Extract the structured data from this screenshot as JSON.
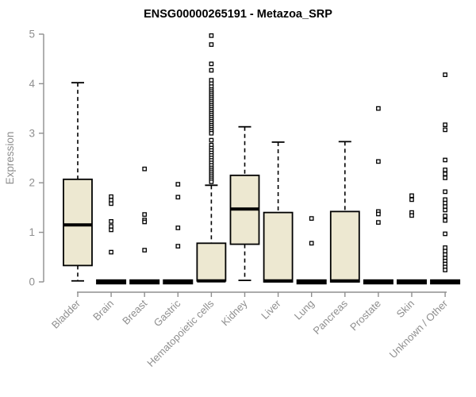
{
  "colors": {
    "box_fill": "#ede8d1",
    "box_stroke": "#000000",
    "axis": "#8f8f8f",
    "label_text": "#8f8f8f",
    "title_text": "#000000",
    "background": "#ffffff"
  },
  "chart_data": {
    "type": "boxplot",
    "title": "ENSG00000265191 - Metazoa_SRP",
    "xlabel": "",
    "ylabel": "Expression",
    "ylim": [
      0,
      5
    ],
    "yticks": [
      0,
      1,
      2,
      3,
      4,
      5
    ],
    "grid": false,
    "legend": "none",
    "categories": [
      "Bladder",
      "Brain",
      "Breast",
      "Gastric",
      "Hematopoietic cells",
      "Kidney",
      "Liver",
      "Lung",
      "Pancreas",
      "Prostate",
      "Skin",
      "Unknown / Other"
    ],
    "series": [
      {
        "name": "Bladder",
        "low": 0.02,
        "q1": 0.33,
        "med": 1.15,
        "q3": 2.07,
        "high": 4.02,
        "outliers": []
      },
      {
        "name": "Brain",
        "low": 0,
        "q1": 0,
        "med": 0,
        "q3": 0,
        "high": 0,
        "outliers": [
          1.72,
          1.65,
          1.58,
          1.22,
          1.12,
          1.05,
          0.6
        ]
      },
      {
        "name": "Breast",
        "low": 0,
        "q1": 0,
        "med": 0,
        "q3": 0,
        "high": 0,
        "outliers": [
          2.28,
          1.36,
          1.25,
          1.21,
          0.64
        ]
      },
      {
        "name": "Gastric",
        "low": 0,
        "q1": 0,
        "med": 0,
        "q3": 0,
        "high": 0,
        "outliers": [
          1.97,
          1.71,
          1.09,
          0.72
        ]
      },
      {
        "name": "Hematopoietic cells",
        "low": 0.02,
        "q1": 0.02,
        "med": 0.02,
        "q3": 0.78,
        "high": 1.95,
        "outliers": [
          4.97,
          4.79,
          4.4,
          4.27,
          4.07,
          4.0,
          3.94,
          3.88,
          3.84,
          3.8,
          3.76,
          3.72,
          3.68,
          3.64,
          3.6,
          3.56,
          3.52,
          3.48,
          3.44,
          3.4,
          3.36,
          3.32,
          3.28,
          3.24,
          3.2,
          3.16,
          3.12,
          3.08,
          3.04,
          3.0,
          2.86,
          2.76,
          2.7,
          2.65,
          2.6,
          2.55,
          2.5,
          2.45,
          2.4,
          2.35,
          2.3,
          2.26,
          2.22,
          2.18,
          2.14,
          2.1,
          2.06,
          2.02
        ]
      },
      {
        "name": "Kidney",
        "low": 0.03,
        "q1": 0.76,
        "med": 1.47,
        "q3": 2.15,
        "high": 3.13,
        "outliers": []
      },
      {
        "name": "Liver",
        "low": 0,
        "q1": 0,
        "med": 0.02,
        "q3": 1.4,
        "high": 2.82,
        "outliers": []
      },
      {
        "name": "Lung",
        "low": 0,
        "q1": 0,
        "med": 0,
        "q3": 0,
        "high": 0,
        "outliers": [
          1.28,
          0.78
        ]
      },
      {
        "name": "Pancreas",
        "low": 0,
        "q1": 0,
        "med": 0.02,
        "q3": 1.42,
        "high": 2.83,
        "outliers": []
      },
      {
        "name": "Prostate",
        "low": 0,
        "q1": 0,
        "med": 0,
        "q3": 0,
        "high": 0,
        "outliers": [
          3.5,
          2.43,
          1.42,
          1.37,
          1.2
        ]
      },
      {
        "name": "Skin",
        "low": 0,
        "q1": 0,
        "med": 0,
        "q3": 0,
        "high": 0,
        "outliers": [
          1.74,
          1.66,
          1.4,
          1.34
        ]
      },
      {
        "name": "Unknown / Other",
        "low": 0,
        "q1": 0,
        "med": 0,
        "q3": 0,
        "high": 0,
        "outliers": [
          4.18,
          3.17,
          3.07,
          2.46,
          2.26,
          2.18,
          2.1,
          1.82,
          1.66,
          1.59,
          1.52,
          1.45,
          1.33,
          1.24,
          0.97,
          0.69,
          0.62,
          0.55,
          0.48,
          0.42,
          0.36,
          0.3,
          0.24
        ]
      }
    ]
  }
}
